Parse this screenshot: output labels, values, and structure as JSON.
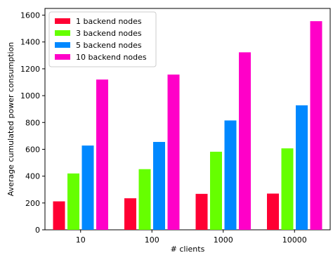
{
  "chart_data": {
    "type": "bar",
    "categories": [
      "10",
      "100",
      "1000",
      "10000"
    ],
    "series": [
      {
        "name": "1 backend nodes",
        "color": "#ff0033",
        "values": [
          212,
          235,
          268,
          270
        ]
      },
      {
        "name": "3 backend nodes",
        "color": "#66ff00",
        "values": [
          420,
          452,
          582,
          607
        ]
      },
      {
        "name": "5 backend nodes",
        "color": "#0088ff",
        "values": [
          628,
          655,
          815,
          928
        ]
      },
      {
        "name": "10 backend nodes",
        "color": "#ff00c8",
        "values": [
          1120,
          1157,
          1323,
          1555
        ]
      }
    ],
    "xlabel": "# clients",
    "ylabel": "Average cumulated power consumption",
    "ylim": [
      0,
      1650
    ],
    "yticks": [
      0,
      200,
      400,
      600,
      800,
      1000,
      1200,
      1400,
      1600
    ],
    "legend_position": "top-left",
    "grid": false
  }
}
